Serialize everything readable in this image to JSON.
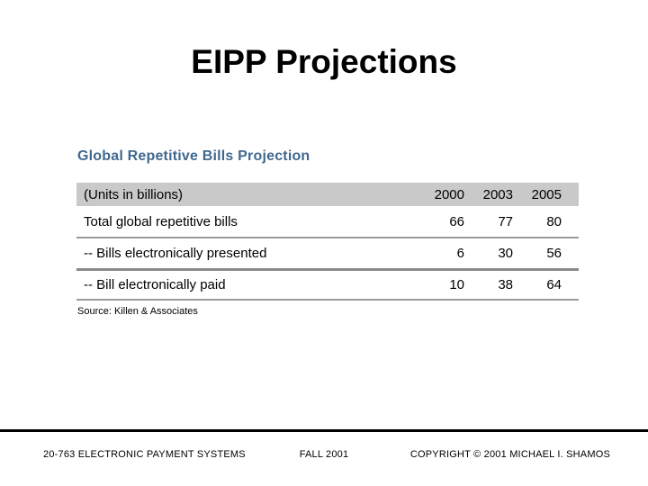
{
  "slide": {
    "title": "EIPP Projections",
    "source": "Source: Killen & Associates"
  },
  "table": {
    "heading": "Global Repetitive Bills Projection",
    "unit_label": "(Units in billions)",
    "years": [
      "2000",
      "2003",
      "2005"
    ],
    "rows": [
      {
        "label": "Total global repetitive bills",
        "values": [
          "66",
          "77",
          "80"
        ]
      },
      {
        "label": "-- Bills electronically presented",
        "values": [
          "6",
          "30",
          "56"
        ]
      },
      {
        "label": "-- Bill electronically paid",
        "values": [
          "10",
          "38",
          "64"
        ]
      }
    ]
  },
  "footer": {
    "left": "20-763 ELECTRONIC PAYMENT SYSTEMS",
    "center": "FALL 2001",
    "right": "COPYRIGHT © 2001 MICHAEL I. SHAMOS"
  },
  "colors": {
    "heading_blue": "#40688F",
    "header_band_gray": "#C9C9C9",
    "separator_gray": "#999999",
    "separator_dark": "#8A8A8A",
    "footer_line_black": "#000000"
  }
}
